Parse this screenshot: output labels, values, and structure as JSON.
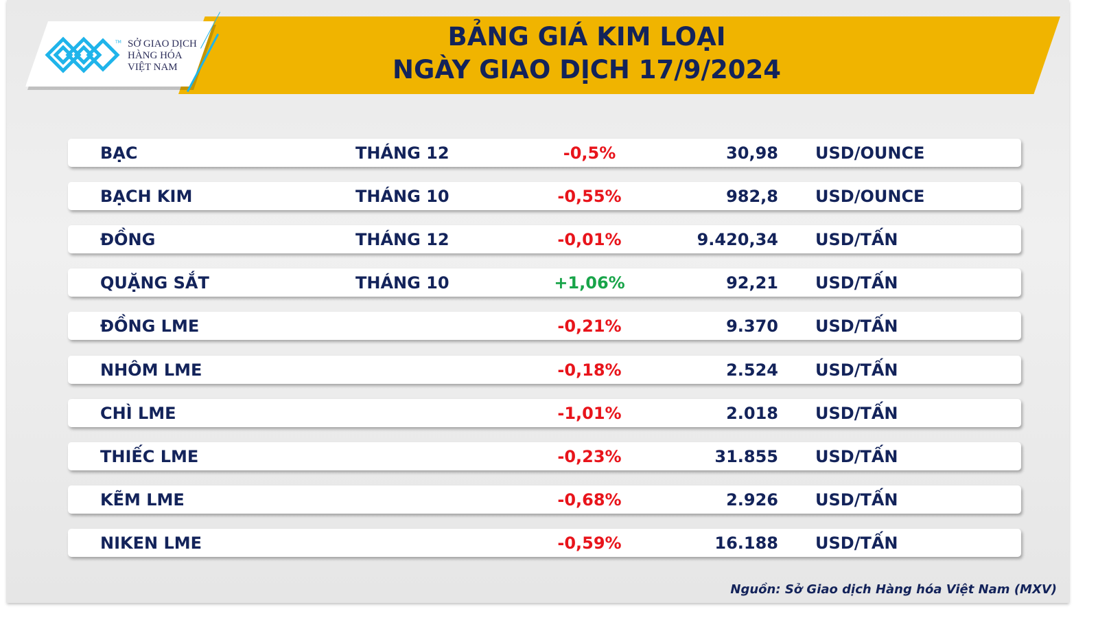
{
  "header": {
    "title_line1": "BẢNG GIÁ KIM LOẠI",
    "title_line2": "NGÀY GIAO DỊCH 17/9/2024"
  },
  "logo": {
    "text_line1": "SỞ GIAO DỊCH",
    "text_line2": "HÀNG HÓA",
    "text_line3": "VIỆT NAM",
    "tm": "TM"
  },
  "colors": {
    "navy": "#13235a",
    "negative": "#e8141b",
    "positive": "#18a449",
    "banner": "#f0b400",
    "logo_blue": "#1fb4ea"
  },
  "rows": [
    {
      "name": "BẠC",
      "month": "THÁNG 12",
      "change": "-0,5%",
      "price": "30,98",
      "unit": "USD/OUNCE"
    },
    {
      "name": "BẠCH KIM",
      "month": "THÁNG 10",
      "change": "-0,55%",
      "price": "982,8",
      "unit": "USD/OUNCE"
    },
    {
      "name": "ĐỒNG",
      "month": "THÁNG 12",
      "change": "-0,01%",
      "price": "9.420,34",
      "unit": "USD/TẤN"
    },
    {
      "name": "QUẶNG SẮT",
      "month": "THÁNG 10",
      "change": "+1,06%",
      "price": "92,21",
      "unit": "USD/TẤN"
    },
    {
      "name": "ĐỒNG LME",
      "month": "",
      "change": "-0,21%",
      "price": "9.370",
      "unit": "USD/TẤN"
    },
    {
      "name": "NHÔM LME",
      "month": "",
      "change": "-0,18%",
      "price": "2.524",
      "unit": "USD/TẤN"
    },
    {
      "name": "CHÌ LME",
      "month": "",
      "change": "-1,01%",
      "price": "2.018",
      "unit": "USD/TẤN"
    },
    {
      "name": "THIẾC LME",
      "month": "",
      "change": "-0,23%",
      "price": "31.855",
      "unit": "USD/TẤN"
    },
    {
      "name": "KẼM LME",
      "month": "",
      "change": "-0,68%",
      "price": "2.926",
      "unit": "USD/TẤN"
    },
    {
      "name": "NIKEN LME",
      "month": "",
      "change": "-0,59%",
      "price": "16.188",
      "unit": "USD/TẤN"
    }
  ],
  "footer": {
    "source": "Nguồn: Sở Giao dịch Hàng hóa Việt Nam (MXV)"
  }
}
